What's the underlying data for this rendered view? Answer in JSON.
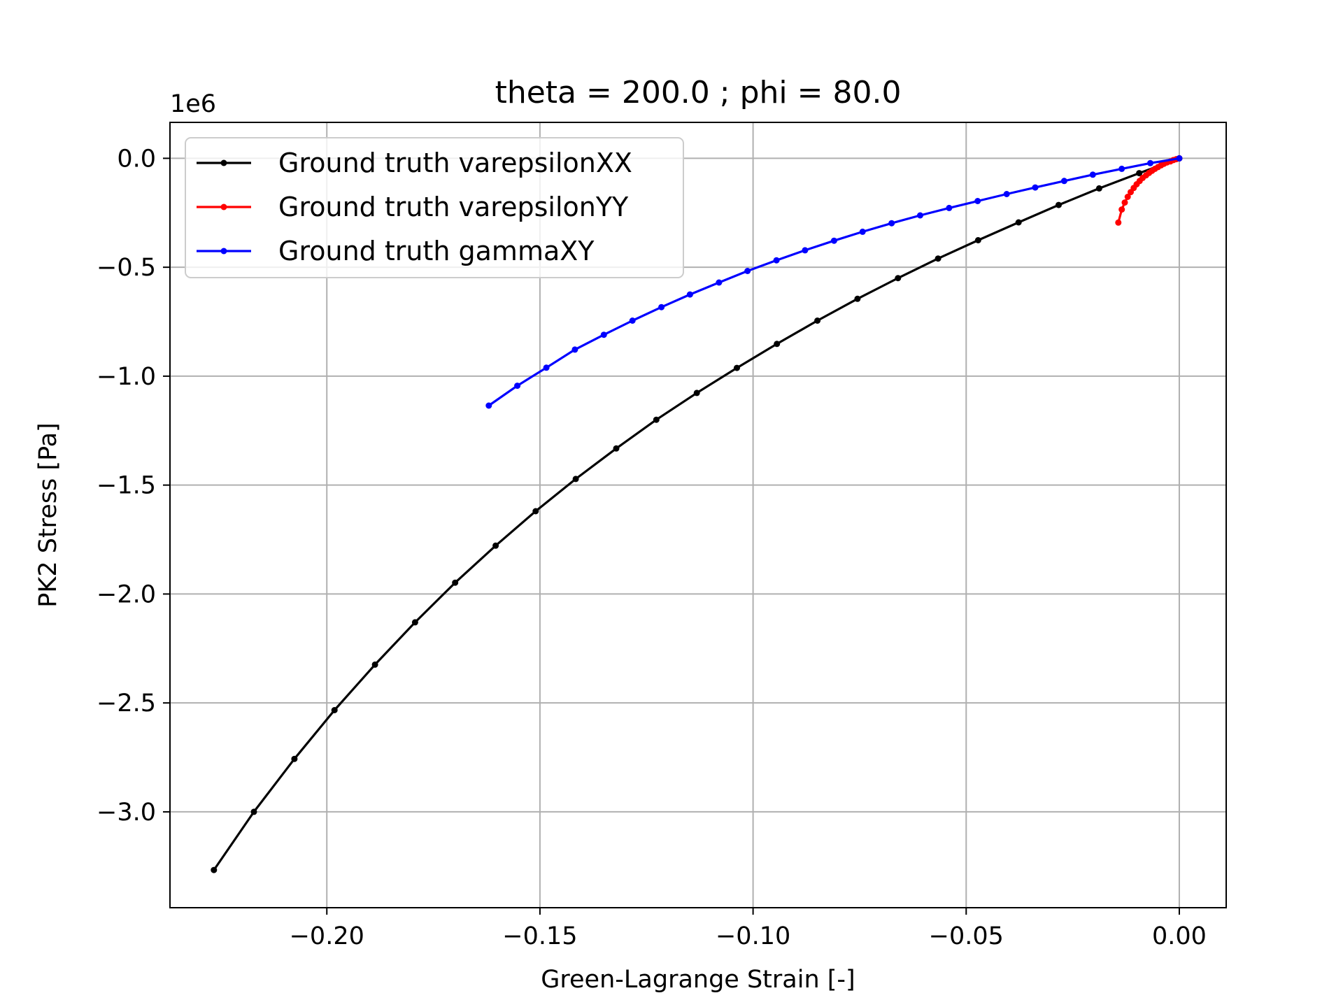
{
  "chart_data": {
    "type": "line",
    "title": "theta = 200.0 ; phi = 80.0",
    "xlabel": "Green-Lagrange Strain [-]",
    "ylabel": "PK2 Stress [Pa]",
    "y_offset_label": "1e6",
    "xlim": [
      -0.2368,
      0.011
    ],
    "ylim": [
      -3.44,
      0.165
    ],
    "x_scale": "linear",
    "y_scale": "linear",
    "y_units_multiplier": 1000000,
    "grid": true,
    "legend_position": "top-left",
    "x_ticks": [
      {
        "value": -0.2,
        "label": "−0.20"
      },
      {
        "value": -0.15,
        "label": "−0.15"
      },
      {
        "value": -0.1,
        "label": "−0.10"
      },
      {
        "value": -0.05,
        "label": "−0.05"
      },
      {
        "value": 0.0,
        "label": "0.00"
      }
    ],
    "y_ticks": [
      {
        "value": 0.0,
        "label": "0.0"
      },
      {
        "value": -0.5,
        "label": "−0.5"
      },
      {
        "value": -1.0,
        "label": "−1.0"
      },
      {
        "value": -1.5,
        "label": "−1.5"
      },
      {
        "value": -2.0,
        "label": "−2.0"
      },
      {
        "value": -2.5,
        "label": "−2.5"
      },
      {
        "value": -3.0,
        "label": "−3.0"
      }
    ],
    "series": [
      {
        "name": "Ground truth varepsilonXX",
        "color": "#000000",
        "x": [
          0.0,
          -0.0094,
          -0.0188,
          -0.0283,
          -0.0377,
          -0.0472,
          -0.0566,
          -0.066,
          -0.0755,
          -0.0849,
          -0.0944,
          -0.1038,
          -0.1132,
          -0.1227,
          -0.1321,
          -0.1416,
          -0.151,
          -0.1604,
          -0.1699,
          -0.1793,
          -0.1887,
          -0.1982,
          -0.2076,
          -0.2171,
          -0.2265
        ],
        "y": [
          0.0,
          -0.068,
          -0.138,
          -0.214,
          -0.294,
          -0.376,
          -0.46,
          -0.55,
          -0.645,
          -0.745,
          -0.852,
          -0.962,
          -1.077,
          -1.2,
          -1.332,
          -1.472,
          -1.62,
          -1.778,
          -1.948,
          -2.13,
          -2.324,
          -2.533,
          -2.757,
          -3.0,
          -3.267
        ]
      },
      {
        "name": "Ground truth varepsilonYY",
        "color": "#ff0000",
        "x": [
          0.0,
          -0.0007,
          -0.0014,
          -0.0021,
          -0.0029,
          -0.0036,
          -0.0043,
          -0.005,
          -0.0057,
          -0.0064,
          -0.0071,
          -0.0078,
          -0.0086,
          -0.0093,
          -0.01,
          -0.0107,
          -0.0114,
          -0.0121,
          -0.0128,
          -0.0135,
          -0.0143
        ],
        "y": [
          0.0,
          -0.004,
          -0.008,
          -0.014,
          -0.019,
          -0.025,
          -0.032,
          -0.04,
          -0.048,
          -0.057,
          -0.067,
          -0.078,
          -0.09,
          -0.104,
          -0.119,
          -0.136,
          -0.155,
          -0.177,
          -0.203,
          -0.235,
          -0.295
        ]
      },
      {
        "name": "Ground truth gammaXY",
        "color": "#0000ff",
        "x": [
          0.0,
          -0.0068,
          -0.0135,
          -0.0203,
          -0.027,
          -0.0338,
          -0.0405,
          -0.0473,
          -0.054,
          -0.0608,
          -0.0675,
          -0.0743,
          -0.081,
          -0.0878,
          -0.0945,
          -0.1013,
          -0.108,
          -0.1148,
          -0.1215,
          -0.1283,
          -0.135,
          -0.1418,
          -0.1485,
          -0.1553,
          -0.162
        ],
        "y": [
          0.0,
          -0.022,
          -0.048,
          -0.075,
          -0.104,
          -0.134,
          -0.164,
          -0.196,
          -0.228,
          -0.262,
          -0.298,
          -0.337,
          -0.378,
          -0.422,
          -0.468,
          -0.517,
          -0.57,
          -0.625,
          -0.683,
          -0.745,
          -0.81,
          -0.878,
          -0.961,
          -1.044,
          -1.135
        ]
      }
    ]
  }
}
